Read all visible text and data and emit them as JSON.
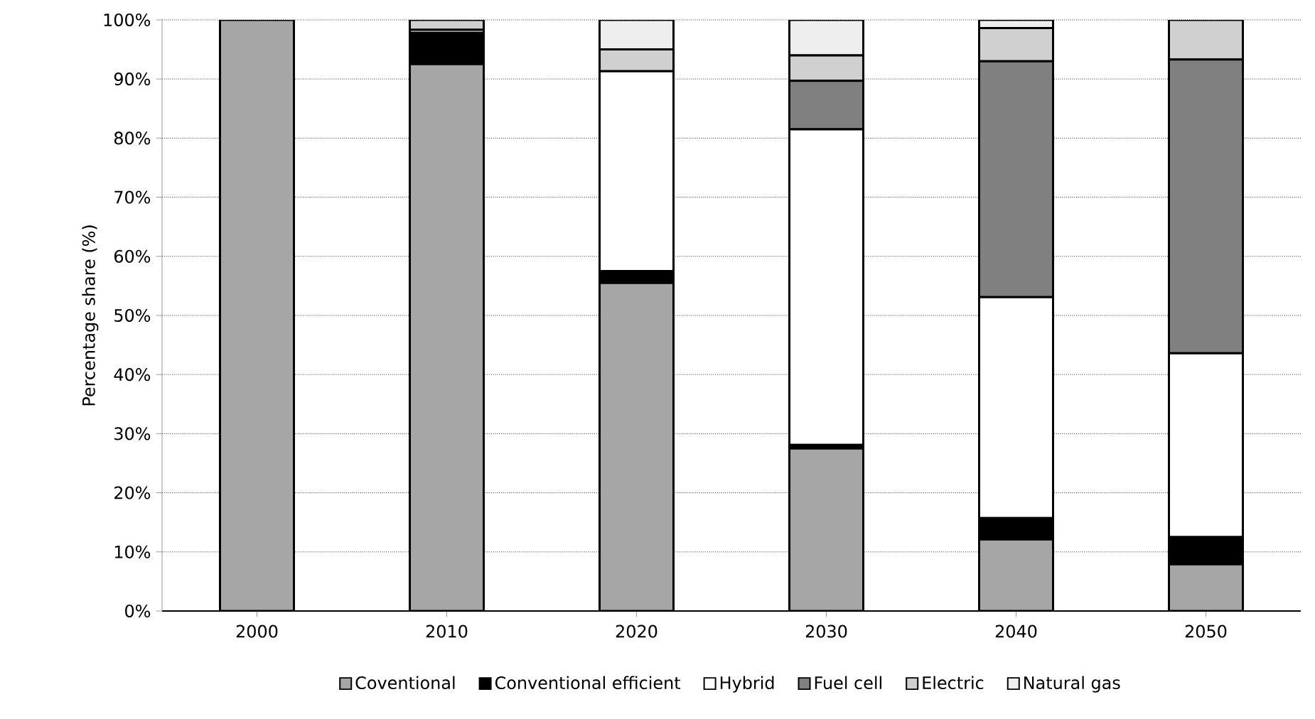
{
  "chart_data": {
    "type": "bar",
    "stacked": true,
    "ylabel": "Percentage share (%)",
    "categories": [
      "2000",
      "2010",
      "2020",
      "2030",
      "2040",
      "2050"
    ],
    "series": [
      {
        "name": "Coventional",
        "color": "#a6a6a6",
        "values": [
          100,
          92.5,
          55.5,
          27.5,
          12.1,
          7.9
        ]
      },
      {
        "name": "Conventional efficient",
        "color": "#000000",
        "values": [
          0,
          5.3,
          2.0,
          0.6,
          3.6,
          4.6
        ]
      },
      {
        "name": "Hybrid",
        "color": "#ffffff",
        "values": [
          0,
          0.5,
          33.8,
          53.4,
          37.4,
          31.1
        ]
      },
      {
        "name": "Fuel cell",
        "color": "#808080",
        "values": [
          0,
          0,
          0,
          8.2,
          39.9,
          49.7
        ]
      },
      {
        "name": "Electric",
        "color": "#d0d0d0",
        "values": [
          0,
          1.7,
          3.7,
          4.3,
          5.6,
          6.7
        ]
      },
      {
        "name": "Natural gas",
        "color": "#eeeeee",
        "values": [
          0,
          0,
          5.0,
          6.0,
          1.4,
          0
        ]
      }
    ],
    "ylim": [
      0,
      100
    ],
    "yticks": [
      {
        "value": 0,
        "label": "0%"
      },
      {
        "value": 10,
        "label": "10%"
      },
      {
        "value": 20,
        "label": "20%"
      },
      {
        "value": 30,
        "label": "30%"
      },
      {
        "value": 40,
        "label": "40%"
      },
      {
        "value": 50,
        "label": "50%"
      },
      {
        "value": 60,
        "label": "60%"
      },
      {
        "value": 70,
        "label": "70%"
      },
      {
        "value": 80,
        "label": "80%"
      },
      {
        "value": 90,
        "label": "90%"
      },
      {
        "value": 100,
        "label": "100%"
      }
    ],
    "grid": "y",
    "legend": "bottom"
  }
}
